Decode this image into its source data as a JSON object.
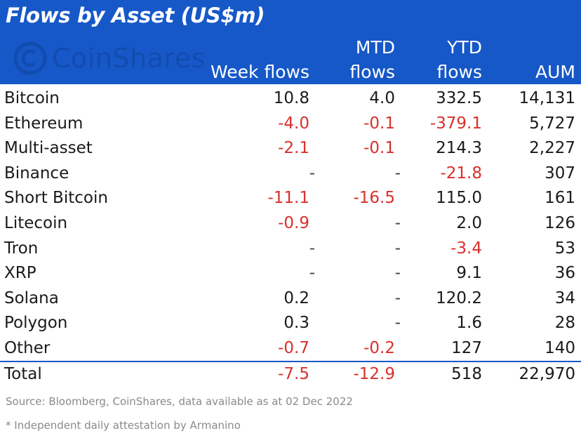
{
  "title": "Flows by Asset (US$m)",
  "watermark": "CoinShares",
  "colors": {
    "header_bg": "#1658c8",
    "negative": "#d9302c",
    "text": "#1a1a1a",
    "footnote": "#8a8a8a"
  },
  "chart_data": {
    "type": "table",
    "columns": [
      "Week flows",
      "MTD flows",
      "YTD flows",
      "AUM"
    ],
    "column_header_lines": [
      [
        "",
        "Week flows"
      ],
      [
        "MTD",
        "flows"
      ],
      [
        "YTD",
        "flows"
      ],
      [
        "",
        "AUM"
      ]
    ],
    "rows": [
      {
        "label": "Bitcoin",
        "cells": [
          "10.8",
          "4.0",
          "332.5",
          "14,131"
        ]
      },
      {
        "label": "Ethereum",
        "cells": [
          "-4.0",
          "-0.1",
          "-379.1",
          "5,727"
        ]
      },
      {
        "label": "Multi-asset",
        "cells": [
          "-2.1",
          "-0.1",
          "214.3",
          "2,227"
        ]
      },
      {
        "label": "Binance",
        "cells": [
          "-",
          "-",
          "-21.8",
          "307"
        ]
      },
      {
        "label": "Short Bitcoin",
        "cells": [
          "-11.1",
          "-16.5",
          "115.0",
          "161"
        ]
      },
      {
        "label": "Litecoin",
        "cells": [
          "-0.9",
          "-",
          "2.0",
          "126"
        ]
      },
      {
        "label": "Tron",
        "cells": [
          "-",
          "-",
          "-3.4",
          "53"
        ]
      },
      {
        "label": "XRP",
        "cells": [
          "-",
          "-",
          "9.1",
          "36"
        ]
      },
      {
        "label": "Solana",
        "cells": [
          "0.2",
          "-",
          "120.2",
          "34"
        ]
      },
      {
        "label": "Polygon",
        "cells": [
          "0.3",
          "-",
          "1.6",
          "28"
        ]
      },
      {
        "label": "Other",
        "cells": [
          "-0.7",
          "-0.2",
          "127",
          "140"
        ]
      }
    ],
    "total": {
      "label": "Total",
      "cells": [
        "-7.5",
        "-12.9",
        "518",
        "22,970"
      ]
    }
  },
  "source": "Source: Bloomberg, CoinShares, data available as at 02 Dec 2022",
  "footnote": "* Independent daily attestation by Armanino"
}
